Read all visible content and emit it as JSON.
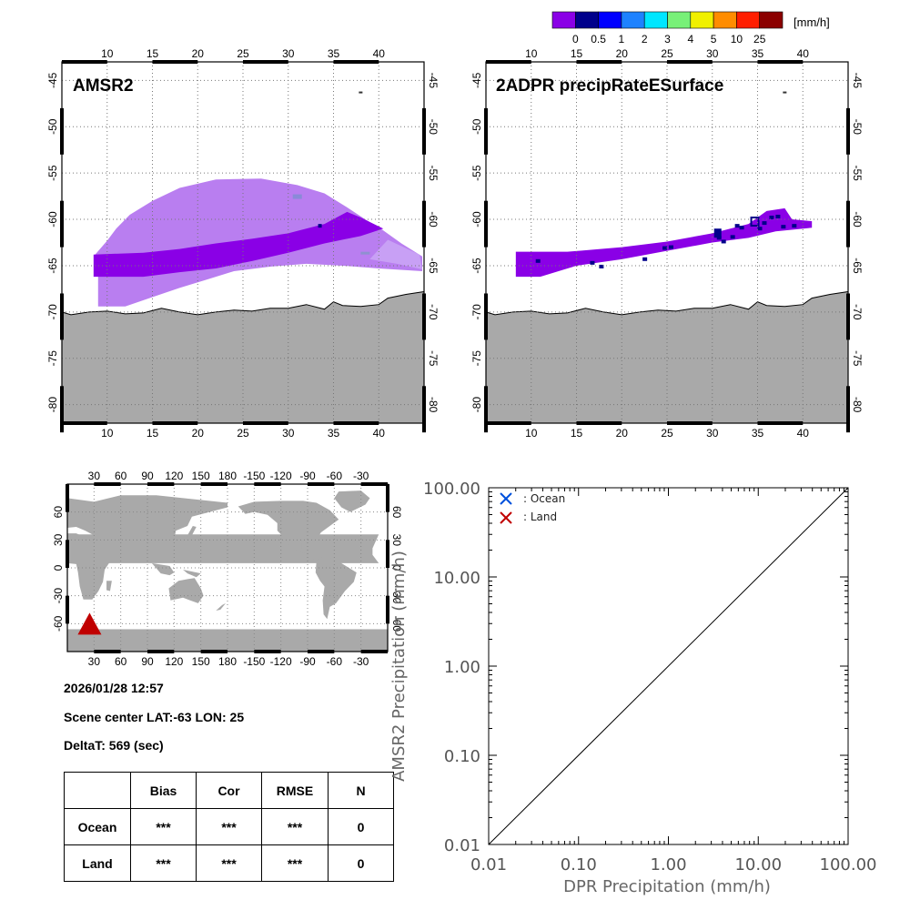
{
  "colorbar": {
    "unit": "[mm/h]",
    "labels": [
      "0",
      "0.5",
      "1",
      "2",
      "3",
      "4",
      "5",
      "10",
      "25"
    ],
    "colors": [
      "#8a00e6",
      "#00008b",
      "#0000ff",
      "#1e82ff",
      "#00e6ff",
      "#78f078",
      "#f0f000",
      "#ff8c00",
      "#ff1e00",
      "#8b0000"
    ]
  },
  "maps": [
    {
      "title": "AMSR2",
      "lon_ticks": [
        "10",
        "15",
        "20",
        "25",
        "30",
        "35",
        "40"
      ],
      "lat_ticks": [
        "-45",
        "-50",
        "-55",
        "-60",
        "-65",
        "-70",
        "-75",
        "-80"
      ],
      "lon_range": [
        5,
        45
      ],
      "lat_range": [
        -82,
        -43
      ],
      "rain_colors": {
        "light": "#b97ef0",
        "medium": "#8a00e6",
        "heavy": "#00008b",
        "pale": "#c8a0f5"
      }
    },
    {
      "title": "2ADPR precipRateESurface",
      "lon_ticks": [
        "10",
        "15",
        "20",
        "25",
        "30",
        "35",
        "40"
      ],
      "lat_ticks": [
        "-45",
        "-50",
        "-55",
        "-60",
        "-65",
        "-70",
        "-75",
        "-80"
      ],
      "lon_range": [
        5,
        45
      ],
      "lat_range": [
        -82,
        -43
      ],
      "rain_colors": {
        "medium": "#8a00e6",
        "heavy": "#00008b"
      }
    }
  ],
  "world_map": {
    "lon_ticks_top": [
      "30",
      "60",
      "90",
      "120",
      "150",
      "180",
      "-150",
      "-120",
      "-90",
      "-60",
      "-30"
    ],
    "lon_ticks_bottom": [
      "30",
      "60",
      "90",
      "120",
      "150",
      "180",
      "-150",
      "-120",
      "-90",
      "-60",
      "-30"
    ],
    "lat_ticks": [
      "60",
      "30",
      "0",
      "-30",
      "-60"
    ],
    "marker_color": "#c00000"
  },
  "info": {
    "datetime": "2026/01/28 12:57",
    "scene_center": "Scene center LAT:-63   LON:  25",
    "delta_t": "DeltaT:  569 (sec)"
  },
  "stats_table": {
    "headers": [
      "",
      "Bias",
      "Cor",
      "RMSE",
      "N"
    ],
    "rows": [
      {
        "label": "Ocean",
        "bias": "***",
        "cor": "***",
        "rmse": "***",
        "n": "0"
      },
      {
        "label": "Land",
        "bias": "***",
        "cor": "***",
        "rmse": "***",
        "n": "0"
      }
    ]
  },
  "chart_data": {
    "type": "scatter",
    "xlabel": "DPR Precipitation (mm/h)",
    "ylabel": "AMSR2 Precipitation (mm/h)",
    "xscale": "log",
    "yscale": "log",
    "xlim": [
      0.01,
      100
    ],
    "ylim": [
      0.01,
      100
    ],
    "x_tick_labels": [
      "0.01",
      "0.10",
      "1.00",
      "10.00",
      "100.00"
    ],
    "y_tick_labels": [
      "0.01",
      "0.10",
      "1.00",
      "10.00",
      "100.00"
    ],
    "series": [
      {
        "name": ": Ocean",
        "marker": "x",
        "color": "#0050dc",
        "points": []
      },
      {
        "name": ": Land",
        "marker": "x",
        "color": "#c00000",
        "points": []
      }
    ],
    "reference_line": "1:1",
    "legend_position": "top-left"
  }
}
